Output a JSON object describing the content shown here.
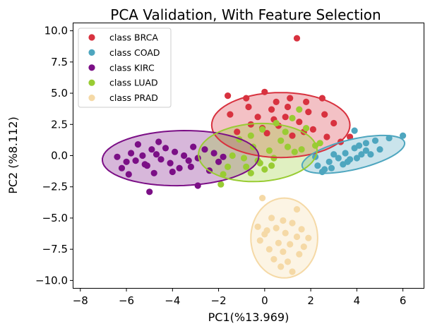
{
  "chart_data": {
    "type": "scatter",
    "title": "PCA Validation, With Feature Selection",
    "xlabel": "PC1(%13.969)",
    "ylabel": "PC2 (%8.112)",
    "xlim": [
      -8.3,
      6.9
    ],
    "ylim": [
      -10.6,
      10.6
    ],
    "xticks": [
      -8,
      -6,
      -4,
      -2,
      0,
      2,
      4,
      6
    ],
    "xtick_labels": [
      "−8",
      "−6",
      "−4",
      "−2",
      "0",
      "2",
      "4",
      "6"
    ],
    "yticks": [
      10.0,
      7.5,
      5.0,
      2.5,
      0.0,
      -2.5,
      -5.0,
      -7.5,
      -10.0
    ],
    "ytick_labels": [
      "10.0",
      "7.5",
      "5.0",
      "2.5",
      "0.0",
      "−2.5",
      "−5.0",
      "−7.5",
      "−10.0"
    ],
    "grid": false,
    "legend_position": "top-left",
    "series": [
      {
        "name": "class BRCA",
        "color": "#d8323f",
        "ellipse": {
          "cx": 0.7,
          "cy": 2.45,
          "w": 6.0,
          "h": 5.2,
          "angle": 0
        },
        "points": [
          [
            1.4,
            9.4
          ],
          [
            -1.6,
            4.8
          ],
          [
            -0.8,
            4.6
          ],
          [
            0.0,
            5.1
          ],
          [
            0.5,
            4.3
          ],
          [
            1.1,
            4.6
          ],
          [
            1.8,
            4.3
          ],
          [
            2.5,
            4.6
          ],
          [
            -0.7,
            3.9
          ],
          [
            0.3,
            3.7
          ],
          [
            1.0,
            3.9
          ],
          [
            1.9,
            3.5
          ],
          [
            -1.5,
            3.3
          ],
          [
            -0.3,
            3.1
          ],
          [
            0.9,
            3.1
          ],
          [
            2.6,
            3.3
          ],
          [
            3.0,
            2.6
          ],
          [
            -0.6,
            2.5
          ],
          [
            0.6,
            2.4
          ],
          [
            1.5,
            2.7
          ],
          [
            2.1,
            2.1
          ],
          [
            -1.2,
            1.9
          ],
          [
            0.1,
            1.8
          ],
          [
            1.2,
            1.6
          ],
          [
            2.7,
            1.5
          ],
          [
            0.4,
            2.9
          ],
          [
            -0.1,
            2.2
          ],
          [
            1.7,
            1.9
          ],
          [
            3.3,
            1.1
          ],
          [
            3.7,
            1.5
          ]
        ]
      },
      {
        "name": "class COAD",
        "color": "#4ea6bf",
        "ellipse": {
          "cx": 3.85,
          "cy": 0.1,
          "w": 4.9,
          "h": 2.25,
          "angle": 28
        },
        "points": [
          [
            6.0,
            1.6
          ],
          [
            5.4,
            1.4
          ],
          [
            4.8,
            1.2
          ],
          [
            4.4,
            1.0
          ],
          [
            4.1,
            0.8
          ],
          [
            5.0,
            0.5
          ],
          [
            4.4,
            0.4
          ],
          [
            3.9,
            0.6
          ],
          [
            3.5,
            0.2
          ],
          [
            4.2,
            0.1
          ],
          [
            3.7,
            -0.3
          ],
          [
            3.2,
            -0.2
          ],
          [
            2.8,
            -0.5
          ],
          [
            3.4,
            -0.7
          ],
          [
            2.6,
            -1.1
          ],
          [
            2.2,
            -0.1
          ],
          [
            3.0,
            0.1
          ],
          [
            2.5,
            -1.3
          ],
          [
            4.6,
            0.1
          ],
          [
            3.9,
            2.0
          ],
          [
            2.3,
            -0.8
          ],
          [
            3.6,
            -0.5
          ],
          [
            4.0,
            -0.2
          ],
          [
            2.9,
            -1.0
          ]
        ]
      },
      {
        "name": "class KIRC",
        "color": "#7b0f86",
        "ellipse": {
          "cx": -3.65,
          "cy": -0.2,
          "w": 6.8,
          "h": 4.4,
          "angle": 4
        },
        "points": [
          [
            -6.4,
            -0.1
          ],
          [
            -6.2,
            -1.0
          ],
          [
            -6.0,
            -0.5
          ],
          [
            -5.8,
            0.2
          ],
          [
            -5.5,
            0.9
          ],
          [
            -5.3,
            0.0
          ],
          [
            -5.1,
            -0.8
          ],
          [
            -4.9,
            0.5
          ],
          [
            -4.8,
            -1.4
          ],
          [
            -4.7,
            0.1
          ],
          [
            -4.5,
            -0.3
          ],
          [
            -4.3,
            0.6
          ],
          [
            -4.1,
            -0.6
          ],
          [
            -3.9,
            0.3
          ],
          [
            -3.7,
            -1.0
          ],
          [
            -3.5,
            0.0
          ],
          [
            -3.3,
            -0.4
          ],
          [
            -3.1,
            0.7
          ],
          [
            -2.9,
            -0.2
          ],
          [
            -2.6,
            0.5
          ],
          [
            -2.4,
            -1.2
          ],
          [
            -2.2,
            0.2
          ],
          [
            -2.0,
            -0.5
          ],
          [
            -1.8,
            -0.1
          ],
          [
            -5.0,
            -2.9
          ],
          [
            -2.9,
            -2.4
          ],
          [
            -5.6,
            -0.4
          ],
          [
            -5.9,
            -1.5
          ],
          [
            -3.2,
            -0.9
          ],
          [
            -4.6,
            1.1
          ],
          [
            -5.2,
            -0.7
          ],
          [
            -4.0,
            -1.3
          ]
        ]
      },
      {
        "name": "class LUAD",
        "color": "#99cc33",
        "ellipse": {
          "cx": -0.3,
          "cy": 0.25,
          "w": 5.2,
          "h": 4.6,
          "angle": 18
        },
        "points": [
          [
            1.5,
            3.7
          ],
          [
            1.2,
            3.0
          ],
          [
            0.5,
            2.6
          ],
          [
            -0.1,
            2.1
          ],
          [
            -0.6,
            1.6
          ],
          [
            -1.1,
            1.3
          ],
          [
            0.9,
            1.9
          ],
          [
            1.8,
            2.2
          ],
          [
            -0.5,
            0.7
          ],
          [
            0.2,
            0.4
          ],
          [
            1.0,
            0.7
          ],
          [
            -1.4,
            0.0
          ],
          [
            -0.9,
            -0.2
          ],
          [
            -0.3,
            -0.4
          ],
          [
            0.4,
            -0.2
          ],
          [
            1.3,
            0.3
          ],
          [
            -1.6,
            -0.9
          ],
          [
            -0.6,
            -1.4
          ],
          [
            0.0,
            -1.1
          ],
          [
            -1.8,
            -1.5
          ],
          [
            -1.9,
            -2.3
          ],
          [
            -0.8,
            -0.9
          ],
          [
            0.3,
            -0.8
          ],
          [
            1.6,
            0.5
          ],
          [
            2.2,
            0.8
          ],
          [
            2.4,
            1.0
          ],
          [
            0.7,
            1.2
          ],
          [
            -0.2,
            -0.6
          ]
        ]
      },
      {
        "name": "class PRAD",
        "color": "#f5d9a6",
        "ellipse": {
          "cx": 0.85,
          "cy": -6.6,
          "w": 2.9,
          "h": 6.4,
          "angle": 0
        },
        "points": [
          [
            -0.1,
            -3.4
          ],
          [
            1.4,
            -4.3
          ],
          [
            0.3,
            -5.0
          ],
          [
            0.8,
            -5.2
          ],
          [
            1.2,
            -5.4
          ],
          [
            -0.3,
            -5.7
          ],
          [
            0.5,
            -5.8
          ],
          [
            1.6,
            -5.9
          ],
          [
            0.0,
            -6.3
          ],
          [
            0.9,
            -6.2
          ],
          [
            1.4,
            -6.5
          ],
          [
            -0.2,
            -6.8
          ],
          [
            0.6,
            -7.0
          ],
          [
            1.1,
            -7.1
          ],
          [
            1.7,
            -7.3
          ],
          [
            0.2,
            -7.5
          ],
          [
            0.8,
            -7.7
          ],
          [
            1.5,
            -7.9
          ],
          [
            0.4,
            -8.3
          ],
          [
            1.0,
            -8.5
          ],
          [
            0.7,
            -8.9
          ],
          [
            1.2,
            -9.3
          ],
          [
            0.1,
            -6.0
          ],
          [
            1.9,
            -6.6
          ]
        ]
      }
    ]
  }
}
